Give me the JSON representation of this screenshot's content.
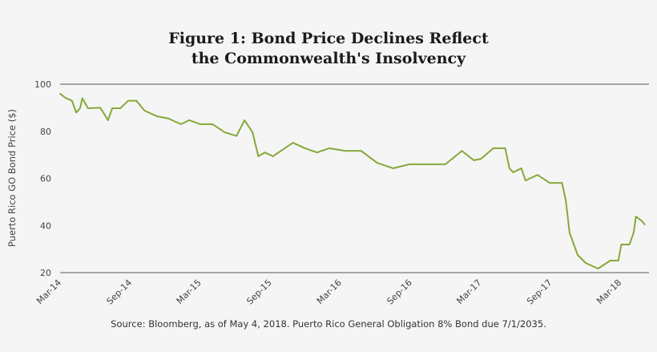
{
  "chart_data": {
    "type": "line",
    "title_line1": "Figure 1: Bond Price Declines Reflect",
    "title_line2": "the Commonwealth's Insolvency",
    "xlabel": "",
    "ylabel": "Puerto Rico GO Bond Price ($)",
    "ylim": [
      20,
      100
    ],
    "yticks": [
      20,
      40,
      60,
      80,
      100
    ],
    "xlim": [
      "2014-03-01",
      "2018-05-15"
    ],
    "xticks": [
      {
        "label": "Mar-14",
        "date": "2014-03-01"
      },
      {
        "label": "Sep-14",
        "date": "2014-09-01"
      },
      {
        "label": "Mar-15",
        "date": "2015-03-01"
      },
      {
        "label": "Sep-15",
        "date": "2015-09-01"
      },
      {
        "label": "Mar-16",
        "date": "2016-03-01"
      },
      {
        "label": "Sep-16",
        "date": "2016-09-01"
      },
      {
        "label": "Mar-17",
        "date": "2017-03-01"
      },
      {
        "label": "Sep-17",
        "date": "2017-09-01"
      },
      {
        "label": "Mar-18",
        "date": "2018-03-01"
      }
    ],
    "grid": "horizontal lines at 20 and 100 only",
    "line_color": "#86a83a",
    "series": [
      {
        "x": [
          "2014-03-01",
          "2014-03-15",
          "2014-04-01",
          "2014-04-12",
          "2014-04-22",
          "2014-04-28",
          "2014-05-13",
          "2014-06-14",
          "2014-07-04",
          "2014-07-15",
          "2014-08-05",
          "2014-08-26",
          "2014-09-16",
          "2014-10-07",
          "2014-11-08",
          "2014-12-09",
          "2015-01-10",
          "2015-02-01",
          "2015-03-02",
          "2015-04-03",
          "2015-05-04",
          "2015-06-04",
          "2015-06-25",
          "2015-07-16",
          "2015-07-31",
          "2015-08-17",
          "2015-09-07",
          "2015-10-08",
          "2015-10-29",
          "2015-11-30",
          "2015-12-31",
          "2016-02-01",
          "2016-03-13",
          "2016-04-24",
          "2016-06-05",
          "2016-07-17",
          "2016-08-28",
          "2016-10-09",
          "2016-11-30",
          "2017-01-12",
          "2017-02-12",
          "2017-03-03",
          "2017-04-04",
          "2017-05-05",
          "2017-05-16",
          "2017-05-26",
          "2017-06-16",
          "2017-06-27",
          "2017-07-28",
          "2017-08-29",
          "2017-09-30",
          "2017-10-10",
          "2017-10-20",
          "2017-11-10",
          "2017-12-01",
          "2018-01-02",
          "2018-02-03",
          "2018-02-24",
          "2018-03-04",
          "2018-03-25",
          "2018-04-05",
          "2018-04-11",
          "2018-04-26",
          "2018-05-04"
        ],
        "y": [
          96,
          94.2,
          93,
          88,
          89.8,
          94,
          89.8,
          90,
          84.7,
          89.8,
          89.8,
          93,
          93,
          88.8,
          86.4,
          85.4,
          83,
          84.7,
          83,
          83,
          79.6,
          78,
          84.7,
          79.6,
          69.4,
          71,
          69.4,
          72.8,
          75.1,
          72.8,
          71,
          72.8,
          71.7,
          71.7,
          66.6,
          64.3,
          66,
          66,
          66,
          71.7,
          67.7,
          68.3,
          72.8,
          72.8,
          64.3,
          62.6,
          64.3,
          59.1,
          61.5,
          58.1,
          58.1,
          50.6,
          36.9,
          27.5,
          24.1,
          21.7,
          25.1,
          25.1,
          31.9,
          31.9,
          37,
          43.8,
          42,
          40.4
        ]
      }
    ],
    "source": "Source: Bloomberg, as of May 4, 2018. Puerto Rico General Obligation 8% Bond due 7/1/2035."
  }
}
